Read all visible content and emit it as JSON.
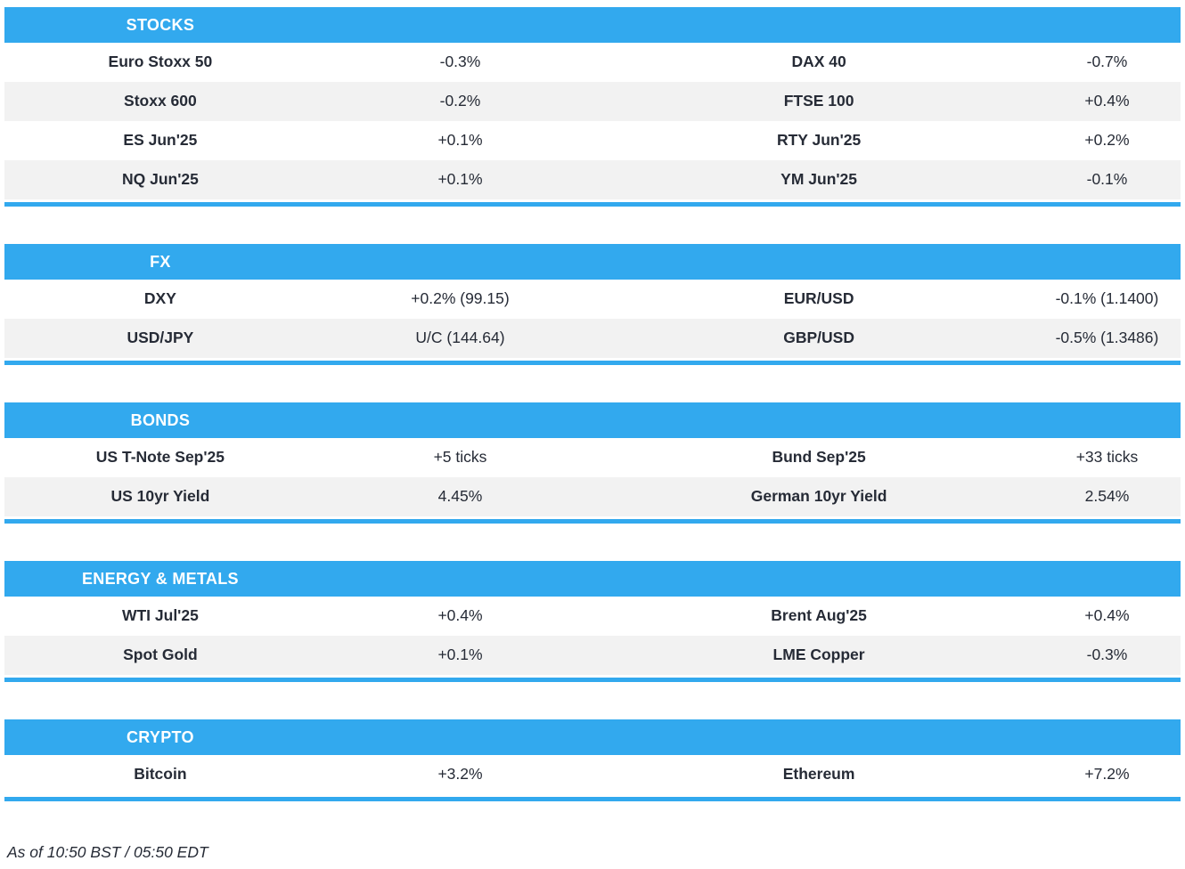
{
  "colors": {
    "accent": "#32a9ee",
    "row_alt": "#f2f2f2",
    "text": "#262b36"
  },
  "sections": [
    {
      "title": "STOCKS",
      "rows": [
        {
          "l_name": "Euro Stoxx 50",
          "l_val": "-0.3%",
          "r_name": "DAX 40",
          "r_val": "-0.7%"
        },
        {
          "l_name": "Stoxx 600",
          "l_val": "-0.2%",
          "r_name": "FTSE 100",
          "r_val": "+0.4%"
        },
        {
          "l_name": "ES Jun'25",
          "l_val": "+0.1%",
          "r_name": "RTY Jun'25",
          "r_val": "+0.2%"
        },
        {
          "l_name": "NQ Jun'25",
          "l_val": "+0.1%",
          "r_name": "YM Jun'25",
          "r_val": "-0.1%"
        }
      ]
    },
    {
      "title": "FX",
      "rows": [
        {
          "l_name": "DXY",
          "l_val": "+0.2% (99.15)",
          "r_name": "EUR/USD",
          "r_val": "-0.1% (1.1400)"
        },
        {
          "l_name": "USD/JPY",
          "l_val": "U/C (144.64)",
          "r_name": "GBP/USD",
          "r_val": "-0.5% (1.3486)"
        }
      ]
    },
    {
      "title": "BONDS",
      "rows": [
        {
          "l_name": "US T-Note Sep'25",
          "l_val": "+5 ticks",
          "r_name": "Bund Sep'25",
          "r_val": "+33 ticks"
        },
        {
          "l_name": "US 10yr Yield",
          "l_val": "4.45%",
          "r_name": "German 10yr Yield",
          "r_val": "2.54%"
        }
      ]
    },
    {
      "title": "ENERGY & METALS",
      "rows": [
        {
          "l_name": "WTI Jul'25",
          "l_val": "+0.4%",
          "r_name": "Brent Aug'25",
          "r_val": "+0.4%"
        },
        {
          "l_name": "Spot Gold",
          "l_val": "+0.1%",
          "r_name": "LME Copper",
          "r_val": "-0.3%"
        }
      ]
    },
    {
      "title": "CRYPTO",
      "rows": [
        {
          "l_name": "Bitcoin",
          "l_val": "+3.2%",
          "r_name": "Ethereum",
          "r_val": "+7.2%"
        }
      ]
    }
  ],
  "footer": {
    "timestamp_note": "As of 10:50 BST / 05:50 EDT"
  }
}
